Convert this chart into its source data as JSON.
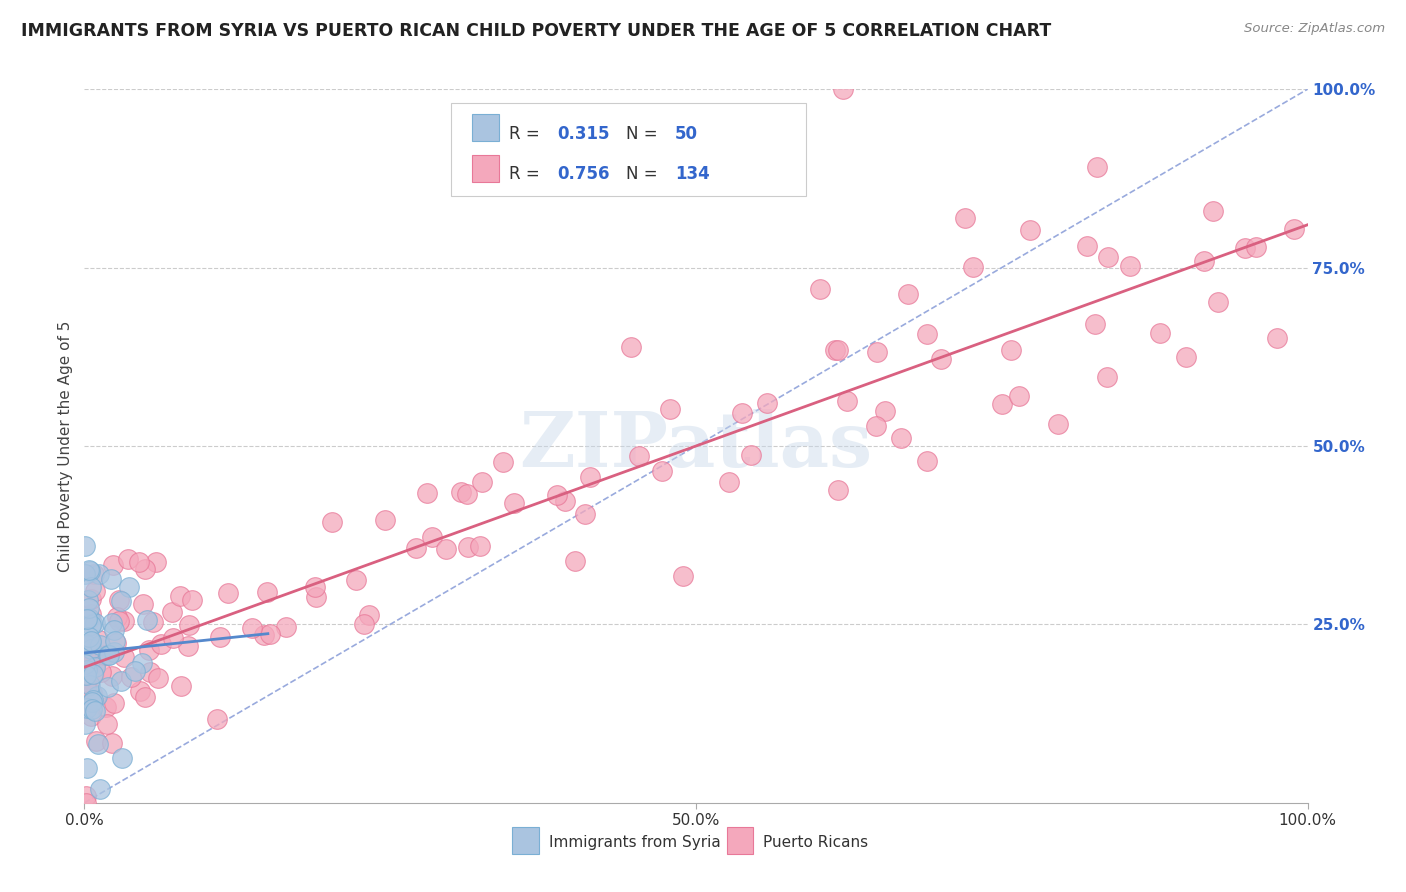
{
  "title": "IMMIGRANTS FROM SYRIA VS PUERTO RICAN CHILD POVERTY UNDER THE AGE OF 5 CORRELATION CHART",
  "source_text": "Source: ZipAtlas.com",
  "ylabel": "Child Poverty Under the Age of 5",
  "watermark": "ZIPatlas",
  "xlim": [
    0.0,
    1.0
  ],
  "ylim": [
    0.0,
    1.0
  ],
  "xtick_positions": [
    0.0,
    0.5,
    1.0
  ],
  "xtick_labels": [
    "0.0%",
    "50.0%",
    "100.0%"
  ],
  "ytick_positions": [
    0.25,
    0.5,
    0.75,
    1.0
  ],
  "ytick_labels": [
    "25.0%",
    "50.0%",
    "75.0%",
    "100.0%"
  ],
  "legend_R1": "0.315",
  "legend_N1": "50",
  "legend_R2": "0.756",
  "legend_N2": "134",
  "legend_label1": "Immigrants from Syria",
  "legend_label2": "Puerto Ricans",
  "syria_color": "#aac4e0",
  "pr_color": "#f4a8bc",
  "syria_edge": "#7aafd4",
  "pr_edge": "#e87898",
  "title_color": "#222222",
  "legend_value_color": "#3366cc",
  "regression_line_pr_color": "#d96080",
  "regression_line_syria_color": "#5588cc",
  "reference_line_color": "#99aadd",
  "grid_color": "#cccccc",
  "background_color": "#ffffff",
  "pr_reg_slope": 0.62,
  "pr_reg_intercept": 0.19,
  "syria_reg_slope": 0.18,
  "syria_reg_intercept": 0.21
}
